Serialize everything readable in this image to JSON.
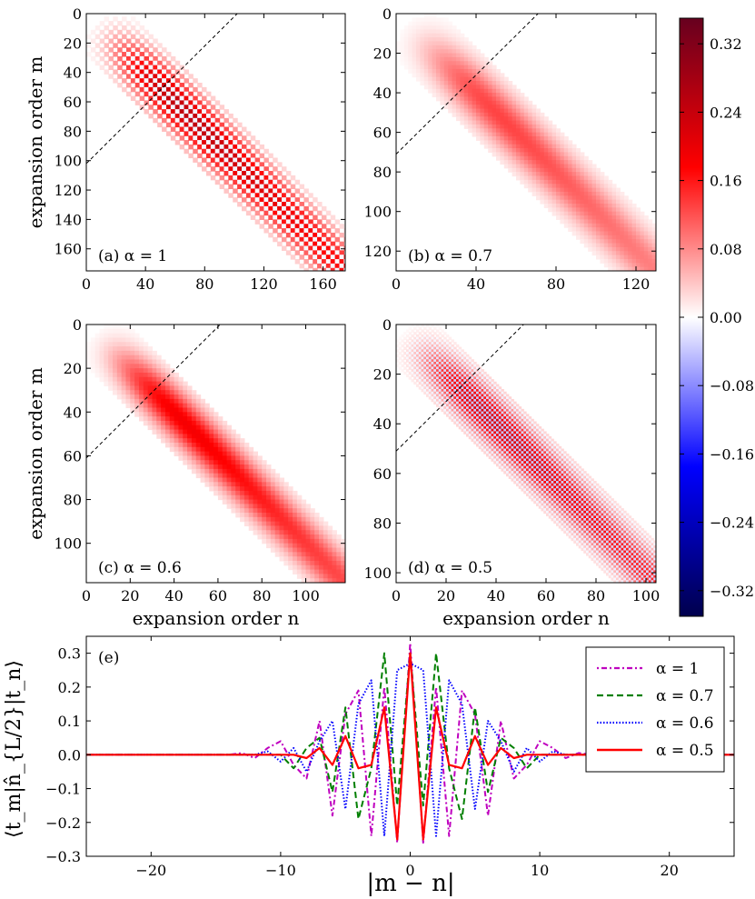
{
  "colorbar": {
    "ticks": [
      "0.32",
      "0.24",
      "0.16",
      "0.08",
      "0.00",
      "−0.08",
      "−0.16",
      "−0.24",
      "−0.32"
    ],
    "tick_values": [
      0.32,
      0.24,
      0.16,
      0.08,
      0.0,
      -0.08,
      -0.16,
      -0.24,
      -0.32
    ],
    "range": [
      -0.35,
      0.35
    ],
    "colors": {
      "max": "#67001f",
      "pos": "#ff0000",
      "zero": "#ffffff",
      "neg": "#0000ff",
      "min": "#00004d"
    }
  },
  "panels": [
    {
      "id": "a",
      "label": "(a) α = 1",
      "size": 175,
      "yticks": [
        "0",
        "20",
        "40",
        "60",
        "80",
        "100",
        "120",
        "140",
        "160"
      ],
      "ytick_values": [
        0,
        20,
        40,
        60,
        80,
        100,
        120,
        140,
        160
      ],
      "xticks": [
        "0",
        "40",
        "80",
        "120",
        "160"
      ],
      "xtick_values": [
        0,
        40,
        80,
        120,
        160
      ],
      "ylabel": "expansion order m",
      "xlabel": "",
      "dashed_intercept": 102,
      "band_center": 52,
      "band_width": 14,
      "tone": 0.55
    },
    {
      "id": "b",
      "label": "(b) α = 0.7",
      "size": 130,
      "yticks": [
        "0",
        "20",
        "40",
        "60",
        "80",
        "100",
        "120"
      ],
      "ytick_values": [
        0,
        20,
        40,
        60,
        80,
        100,
        120
      ],
      "xticks": [
        "0",
        "40",
        "80",
        "120"
      ],
      "xtick_values": [
        0,
        40,
        80,
        120
      ],
      "ylabel": "",
      "xlabel": "",
      "dashed_intercept": 71,
      "band_center": 40,
      "band_width": 11,
      "tone": -0.2
    },
    {
      "id": "c",
      "label": "(c) α = 0.6",
      "size": 118,
      "yticks": [
        "0",
        "20",
        "40",
        "60",
        "80",
        "100"
      ],
      "ytick_values": [
        0,
        20,
        40,
        60,
        80,
        100
      ],
      "xticks": [
        "0",
        "20",
        "40",
        "60",
        "80",
        "100"
      ],
      "xtick_values": [
        0,
        20,
        40,
        60,
        80,
        100
      ],
      "ylabel": "expansion order m",
      "xlabel": "expansion order n",
      "dashed_intercept": 61,
      "band_center": 35,
      "band_width": 9,
      "tone": 0.15
    },
    {
      "id": "d",
      "label": "(d) α = 0.5",
      "size": 104,
      "yticks": [
        "0",
        "20",
        "40",
        "60",
        "80",
        "100"
      ],
      "ytick_values": [
        0,
        20,
        40,
        60,
        80,
        100
      ],
      "xticks": [
        "0",
        "20",
        "40",
        "60",
        "80",
        "100"
      ],
      "xtick_values": [
        0,
        20,
        40,
        60,
        80,
        100
      ],
      "ylabel": "",
      "xlabel": "expansion order n",
      "dashed_intercept": 51,
      "band_center": 30,
      "band_width": 8,
      "tone": 0.35
    }
  ],
  "chart_data": {
    "type": "line",
    "panel_label": "(e)",
    "xlabel": "|m − n|",
    "ylabel": "⟨t_m|n̂_{L/2}|t_n⟩",
    "xlim": [
      -25,
      25
    ],
    "ylim": [
      -0.3,
      0.35
    ],
    "xticks": [
      "−20",
      "−10",
      "0",
      "10",
      "20"
    ],
    "xtick_values": [
      -20,
      -10,
      0,
      10,
      20
    ],
    "yticks": [
      "0.3",
      "0.2",
      "0.1",
      "0.0",
      "−0.1",
      "−0.2",
      "−0.3"
    ],
    "ytick_values": [
      0.3,
      0.2,
      0.1,
      0.0,
      -0.1,
      -0.2,
      -0.3
    ],
    "legend_position": "top-right",
    "series": [
      {
        "name": "α = 1",
        "color": "#bf00bf",
        "dash": "2,3,6,3",
        "x": [
          -25,
          -14,
          -13,
          -12,
          -11,
          -10,
          -9,
          -8,
          -7,
          -6,
          -5,
          -4,
          -3,
          -2,
          -1,
          0,
          1,
          2,
          3,
          4,
          5,
          6,
          7,
          8,
          9,
          10,
          11,
          12,
          13,
          14,
          25
        ],
        "y": [
          0,
          0,
          0.005,
          -0.01,
          0.02,
          0.04,
          -0.03,
          -0.07,
          0.1,
          -0.18,
          0.12,
          0.19,
          -0.24,
          0.2,
          -0.26,
          0.33,
          -0.26,
          0.2,
          -0.24,
          0.19,
          0.12,
          -0.18,
          0.1,
          -0.07,
          -0.03,
          0.04,
          0.02,
          -0.01,
          0.005,
          0,
          0
        ]
      },
      {
        "name": "α = 0.7",
        "color": "#007f00",
        "dash": "7,4",
        "x": [
          -25,
          -10,
          -9,
          -8,
          -7,
          -6,
          -5,
          -4,
          -3,
          -2,
          -1,
          0,
          1,
          2,
          3,
          4,
          5,
          6,
          7,
          8,
          9,
          10,
          25
        ],
        "y": [
          0,
          0,
          -0.04,
          0.02,
          0.05,
          -0.11,
          0.14,
          -0.19,
          -0.04,
          0.3,
          -0.15,
          0.3,
          -0.15,
          0.3,
          -0.04,
          -0.19,
          0.14,
          -0.11,
          0.05,
          0.02,
          -0.04,
          0,
          0
        ]
      },
      {
        "name": "α = 0.6",
        "color": "#0000ff",
        "dash": "1.5,2",
        "x": [
          -25,
          -12,
          -11,
          -10,
          -9,
          -8,
          -7,
          -6,
          -5,
          -4,
          -3,
          -2,
          -1,
          0,
          1,
          2,
          3,
          4,
          5,
          6,
          7,
          8,
          9,
          10,
          11,
          12,
          25
        ],
        "y": [
          0,
          0,
          0.01,
          -0.02,
          0.02,
          -0.05,
          0.04,
          0.1,
          -0.16,
          0.15,
          0.22,
          -0.24,
          0.25,
          0.27,
          0.25,
          -0.24,
          0.22,
          0.15,
          -0.16,
          0.1,
          0.04,
          -0.05,
          0.02,
          -0.02,
          0.01,
          0,
          0
        ]
      },
      {
        "name": "α = 0.5",
        "color": "#ff0000",
        "dash": "",
        "x": [
          -25,
          -9,
          -8,
          -7,
          -6,
          -5,
          -4,
          -3,
          -2,
          -1,
          0,
          1,
          2,
          3,
          4,
          5,
          6,
          7,
          8,
          9,
          25
        ],
        "y": [
          0,
          0,
          -0.01,
          0.02,
          -0.03,
          0.055,
          -0.04,
          -0.03,
          0.14,
          -0.25,
          0.3,
          -0.25,
          0.14,
          -0.03,
          -0.04,
          0.055,
          -0.03,
          0.02,
          -0.01,
          0,
          0
        ]
      }
    ]
  }
}
